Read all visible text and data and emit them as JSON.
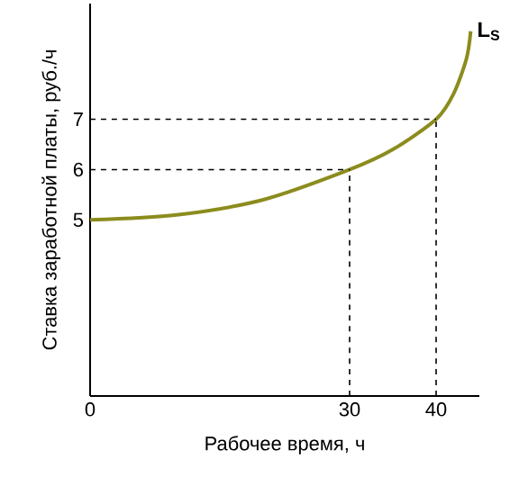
{
  "chart_data": {
    "type": "line",
    "xlabel": "Рабочее время, ч",
    "ylabel": "Ставка заработной платы, руб./ч",
    "x": [
      0,
      10,
      20,
      30,
      35,
      40,
      42,
      43.5,
      44
    ],
    "series": [
      {
        "name": "L$_{S}$",
        "color": "#8c8c1e",
        "values": [
          5,
          5.1,
          5.4,
          6,
          6.4,
          7,
          7.5,
          8.2,
          8.75
        ]
      }
    ],
    "xlim": [
      0,
      45
    ],
    "ylim": [
      1.5,
      9.3
    ],
    "xticks": [
      0,
      30,
      40
    ],
    "yticks": [
      5,
      6,
      7
    ],
    "ref_lines": [
      {
        "axis": "x",
        "value": 30,
        "line_style": "dashed"
      },
      {
        "axis": "y",
        "value": 6,
        "line_style": "dashed"
      },
      {
        "axis": "x",
        "value": 40,
        "line_style": "dashed"
      },
      {
        "axis": "y",
        "value": 7,
        "line_style": "dashed"
      }
    ],
    "legend": false,
    "grid": false,
    "marker": "none",
    "line_style": "solid"
  }
}
